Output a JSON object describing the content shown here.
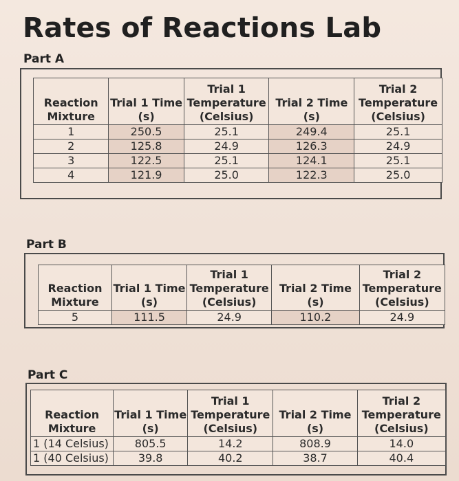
{
  "title": "Rates of Reactions Lab",
  "headers": [
    "Reaction Mixture",
    "Trial 1 Time (s)",
    "Trial 1 Temperature (Celsius)",
    "Trial 2 Time (s)",
    "Trial 2 Temperature (Celsius)"
  ],
  "header_lines": [
    [
      "Reaction",
      "Mixture"
    ],
    [
      "Trial 1 Time",
      "(s)"
    ],
    [
      "Trial 1",
      "Temperature",
      "(Celsius)"
    ],
    [
      "Trial 2 Time",
      "(s)"
    ],
    [
      "Trial 2",
      "Temperature",
      "(Celsius)"
    ]
  ],
  "parts": [
    {
      "label": "Part A",
      "rows": [
        [
          "1",
          "250.5",
          "25.1",
          "249.4",
          "25.1"
        ],
        [
          "2",
          "125.8",
          "24.9",
          "126.3",
          "24.9"
        ],
        [
          "3",
          "122.5",
          "25.1",
          "124.1",
          "25.1"
        ],
        [
          "4",
          "121.9",
          "25.0",
          "122.3",
          "25.0"
        ]
      ]
    },
    {
      "label": "Part B",
      "rows": [
        [
          "5",
          "111.5",
          "24.9",
          "110.2",
          "24.9"
        ]
      ]
    },
    {
      "label": "Part C",
      "rows": [
        [
          "1 (14 Celsius)",
          "805.5",
          "14.2",
          "808.9",
          "14.0"
        ],
        [
          "1 (40 Celsius)",
          "39.8",
          "40.2",
          "38.7",
          "40.4"
        ]
      ]
    }
  ]
}
